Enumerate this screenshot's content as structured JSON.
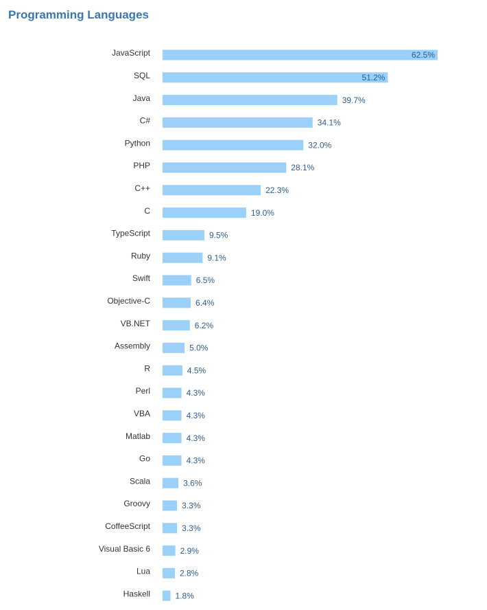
{
  "chart_data": {
    "type": "bar",
    "orientation": "horizontal",
    "title": "Programming Languages",
    "xlabel": "",
    "ylabel": "",
    "xlim": [
      0,
      62.5
    ],
    "grid": false,
    "legend": "none",
    "bar_color": "#9bd1f8",
    "title_color": "#3a76b0",
    "label_color": "#2c5d8f",
    "value_suffix": "%",
    "categories": [
      "JavaScript",
      "SQL",
      "Java",
      "C#",
      "Python",
      "PHP",
      "C++",
      "C",
      "TypeScript",
      "Ruby",
      "Swift",
      "Objective-C",
      "VB.NET",
      "Assembly",
      "R",
      "Perl",
      "VBA",
      "Matlab",
      "Go",
      "Scala",
      "Groovy",
      "CoffeeScript",
      "Visual Basic 6",
      "Lua",
      "Haskell"
    ],
    "values": [
      62.5,
      51.2,
      39.7,
      34.1,
      32.0,
      28.1,
      22.3,
      19.0,
      9.5,
      9.1,
      6.5,
      6.4,
      6.2,
      5.0,
      4.5,
      4.3,
      4.3,
      4.3,
      4.3,
      3.6,
      3.3,
      3.3,
      2.9,
      2.8,
      1.8
    ]
  }
}
